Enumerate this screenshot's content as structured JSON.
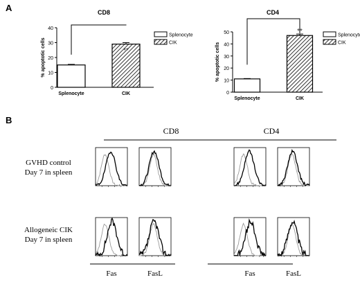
{
  "panel_labels": {
    "a": "A",
    "b": "B"
  },
  "chart_data": [
    {
      "type": "bar",
      "title": "CD8",
      "ylabel": "% apoptotic cells",
      "categories": [
        "Splenocyte",
        "CIK"
      ],
      "values": [
        15,
        29
      ],
      "errors": [
        0.4,
        1.0
      ],
      "ylim": [
        0,
        40
      ],
      "yticks": [
        "0",
        "10",
        "20",
        "30",
        "40"
      ],
      "legend": [
        "Splenocyte",
        "CIK"
      ],
      "legend_position": "top-right",
      "significance": "**"
    },
    {
      "type": "bar",
      "title": "CD4",
      "ylabel": "% apoptotic cells",
      "categories": [
        "Splenocyte",
        "CIK"
      ],
      "values": [
        11,
        47
      ],
      "errors": [
        0.3,
        1.2
      ],
      "ylim": [
        0,
        50
      ],
      "yticks": [
        "0",
        "10",
        "20",
        "30",
        "40",
        "50"
      ],
      "legend": [
        "Splenocyte",
        "CIK"
      ],
      "legend_position": "top-right",
      "significance": "**"
    }
  ],
  "flow_panel": {
    "groups": [
      "CD8",
      "CD4"
    ],
    "rows": [
      {
        "line1": "GVHD control",
        "line2": "Day 7 in spleen"
      },
      {
        "line1": "Allogeneic CIK",
        "line2": "Day 7 in spleen"
      }
    ],
    "columns": [
      "Fas",
      "FasL",
      "Fas",
      "FasL"
    ]
  }
}
